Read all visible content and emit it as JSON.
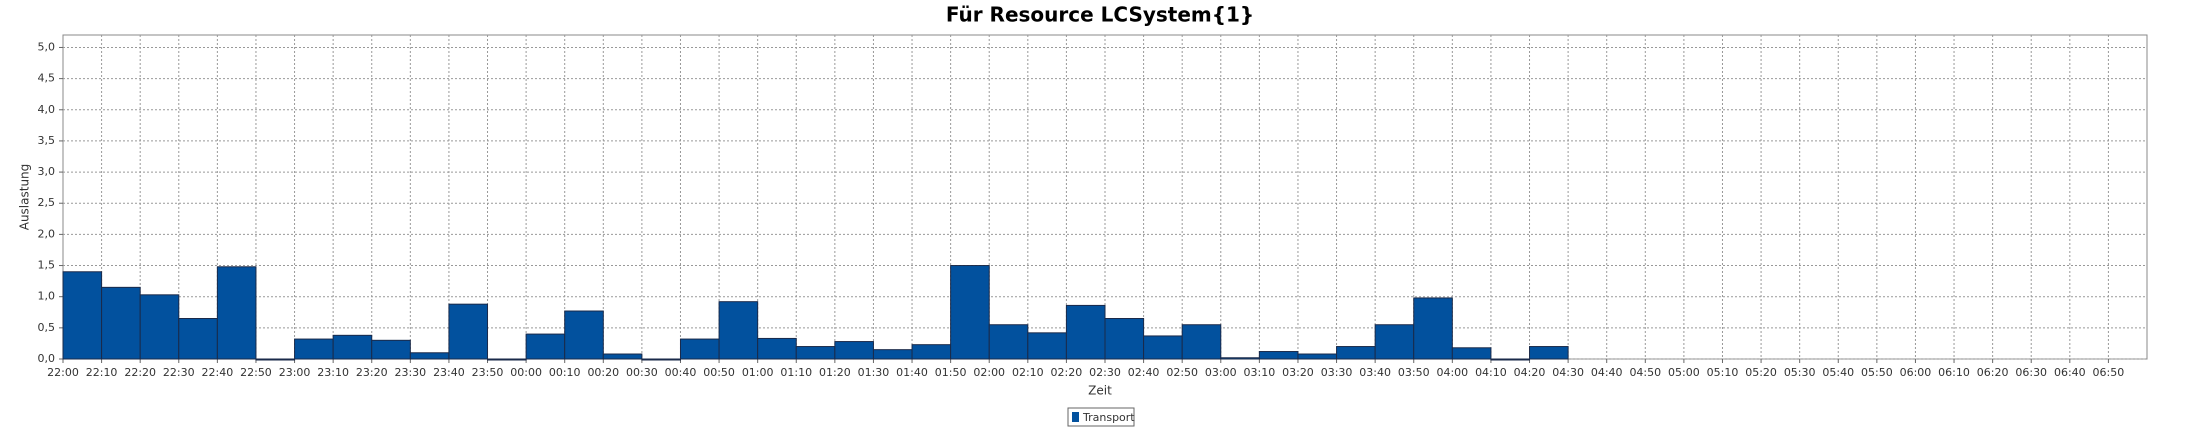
{
  "chart_data": {
    "type": "bar",
    "title": "Für Resource LCSystem{1}",
    "x_label": "Zeit",
    "y_label": "Auslastung",
    "categories": [
      "22:00",
      "22:10",
      "22:20",
      "22:30",
      "22:40",
      "22:50",
      "23:00",
      "23:10",
      "23:20",
      "23:30",
      "23:40",
      "23:50",
      "00:00",
      "00:10",
      "00:20",
      "00:30",
      "00:40",
      "00:50",
      "01:00",
      "01:10",
      "01:20",
      "01:30",
      "01:40",
      "01:50",
      "02:00",
      "02:10",
      "02:20",
      "02:30",
      "02:40",
      "02:50",
      "03:00",
      "03:10",
      "03:20",
      "03:30",
      "03:40",
      "03:50",
      "04:00",
      "04:10",
      "04:20",
      "04:30",
      "04:40",
      "04:50",
      "05:00",
      "05:10",
      "05:20",
      "05:30",
      "05:40",
      "05:50",
      "06:00",
      "06:10",
      "06:20",
      "06:30",
      "06:40",
      "06:50"
    ],
    "series": [
      {
        "name": "Transport",
        "color": "#02519e",
        "values": [
          1.4,
          1.15,
          1.03,
          0.65,
          1.48,
          0,
          0.32,
          0.38,
          0.3,
          0.1,
          0.88,
          0,
          0.4,
          0.77,
          0.08,
          0,
          0.32,
          0.92,
          0.33,
          0.2,
          0.28,
          0.15,
          0.23,
          1.5,
          0.55,
          0.42,
          0.86,
          0.65,
          0.37,
          0.55,
          0.02,
          0.12,
          0.08,
          0.2,
          0.55,
          0.98,
          0.18,
          0,
          0.2,
          null,
          null,
          null,
          null,
          null,
          null,
          null,
          null,
          null,
          null,
          null,
          null,
          null,
          null,
          null
        ]
      }
    ],
    "ylim": [
      0,
      5.2
    ],
    "yticks": [
      {
        "value": 0,
        "label": "0,0"
      },
      {
        "value": 0.5,
        "label": "0,5"
      },
      {
        "value": 1,
        "label": "1,0"
      },
      {
        "value": 1.5,
        "label": "1,5"
      },
      {
        "value": 2,
        "label": "2,0"
      },
      {
        "value": 2.5,
        "label": "2,5"
      },
      {
        "value": 3,
        "label": "3,0"
      },
      {
        "value": 3.5,
        "label": "3,5"
      },
      {
        "value": 4,
        "label": "4,0"
      },
      {
        "value": 4.5,
        "label": "4,5"
      },
      {
        "value": 5,
        "label": "5,0"
      }
    ],
    "grid": true
  }
}
